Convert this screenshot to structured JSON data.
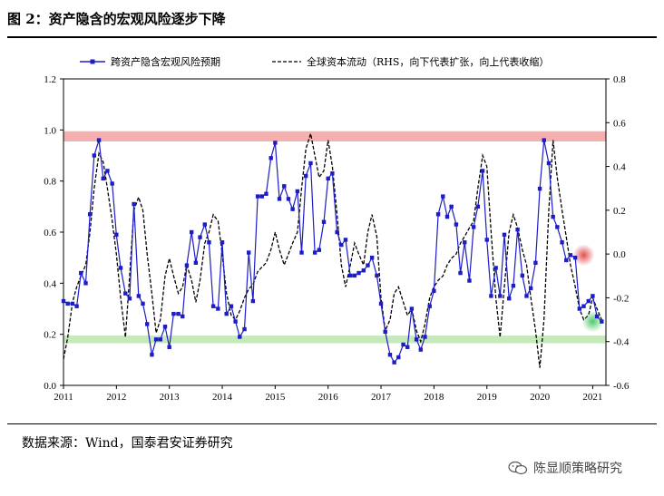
{
  "header": {
    "figure_title": "图 2：资产隐含的宏观风险逐步下降",
    "source": "数据来源：Wind，国泰君安证券研究",
    "watermark": "陈显顺策略研究"
  },
  "colors": {
    "primary_series": "#1c1cc8",
    "secondary_series": "#000000",
    "upper_band": "#f4a6a6",
    "lower_band": "#bfe7b2",
    "highlight_red": "#e03030",
    "highlight_green": "#30c050"
  },
  "chart_data": {
    "type": "line",
    "legend": [
      {
        "label": "跨资产隐含宏观风险预期",
        "style": "solid-marker"
      },
      {
        "label": "全球资本流动（RHS，向下代表扩张，向上代表收缩）",
        "style": "dashed"
      }
    ],
    "legend_position": "top",
    "x_ticks": [
      "2011",
      "2012",
      "2013",
      "2014",
      "2015",
      "2016",
      "2017",
      "2018",
      "2019",
      "2020",
      "2021"
    ],
    "x_range": [
      2011.0,
      2021.25
    ],
    "y_left": {
      "ticks": [
        "0.0",
        "0.2",
        "0.4",
        "0.6",
        "0.8",
        "1.0",
        "1.2"
      ],
      "range": [
        0,
        1.2
      ]
    },
    "y_right": {
      "ticks": [
        "-0.6",
        "-0.4",
        "-0.2",
        "0.0",
        "0.2",
        "0.4",
        "0.6",
        "0.8"
      ],
      "range": [
        -0.6,
        0.8
      ]
    },
    "bands": [
      {
        "axis": "left",
        "from": 0.955,
        "to": 0.995,
        "color": "upper_band"
      },
      {
        "axis": "left",
        "from": 0.165,
        "to": 0.195,
        "color": "lower_band"
      }
    ],
    "grid": false,
    "series": [
      {
        "axis": "left",
        "points": [
          [
            2011.0,
            0.33
          ],
          [
            2011.08,
            0.32
          ],
          [
            2011.17,
            0.32
          ],
          [
            2011.25,
            0.31
          ],
          [
            2011.33,
            0.44
          ],
          [
            2011.42,
            0.4
          ],
          [
            2011.5,
            0.67
          ],
          [
            2011.58,
            0.9
          ],
          [
            2011.67,
            0.96
          ],
          [
            2011.75,
            0.81
          ],
          [
            2011.83,
            0.84
          ],
          [
            2011.92,
            0.79
          ],
          [
            2012.0,
            0.59
          ],
          [
            2012.08,
            0.46
          ],
          [
            2012.17,
            0.36
          ],
          [
            2012.25,
            0.34
          ],
          [
            2012.33,
            0.71
          ],
          [
            2012.42,
            0.35
          ],
          [
            2012.5,
            0.32
          ],
          [
            2012.58,
            0.24
          ],
          [
            2012.67,
            0.12
          ],
          [
            2012.75,
            0.18
          ],
          [
            2012.83,
            0.18
          ],
          [
            2012.92,
            0.23
          ],
          [
            2013.0,
            0.15
          ],
          [
            2013.08,
            0.28
          ],
          [
            2013.17,
            0.28
          ],
          [
            2013.25,
            0.27
          ],
          [
            2013.33,
            0.47
          ],
          [
            2013.42,
            0.6
          ],
          [
            2013.5,
            0.48
          ],
          [
            2013.58,
            0.58
          ],
          [
            2013.67,
            0.63
          ],
          [
            2013.75,
            0.56
          ],
          [
            2013.83,
            0.31
          ],
          [
            2013.92,
            0.3
          ],
          [
            2014.0,
            0.56
          ],
          [
            2014.08,
            0.28
          ],
          [
            2014.17,
            0.31
          ],
          [
            2014.25,
            0.25
          ],
          [
            2014.33,
            0.19
          ],
          [
            2014.42,
            0.22
          ],
          [
            2014.5,
            0.52
          ],
          [
            2014.58,
            0.33
          ],
          [
            2014.67,
            0.74
          ],
          [
            2014.75,
            0.74
          ],
          [
            2014.83,
            0.75
          ],
          [
            2014.92,
            0.89
          ],
          [
            2015.0,
            0.95
          ],
          [
            2015.08,
            0.73
          ],
          [
            2015.17,
            0.78
          ],
          [
            2015.25,
            0.73
          ],
          [
            2015.33,
            0.69
          ],
          [
            2015.42,
            0.76
          ],
          [
            2015.5,
            0.52
          ],
          [
            2015.58,
            0.82
          ],
          [
            2015.67,
            0.87
          ],
          [
            2015.75,
            0.52
          ],
          [
            2015.83,
            0.53
          ],
          [
            2015.92,
            0.64
          ],
          [
            2016.0,
            0.81
          ],
          [
            2016.08,
            0.83
          ],
          [
            2016.17,
            0.6
          ],
          [
            2016.25,
            0.55
          ],
          [
            2016.33,
            0.57
          ],
          [
            2016.42,
            0.43
          ],
          [
            2016.5,
            0.43
          ],
          [
            2016.58,
            0.44
          ],
          [
            2016.67,
            0.45
          ],
          [
            2016.75,
            0.47
          ],
          [
            2016.83,
            0.5
          ],
          [
            2016.92,
            0.43
          ],
          [
            2017.0,
            0.32
          ],
          [
            2017.08,
            0.21
          ],
          [
            2017.17,
            0.12
          ],
          [
            2017.25,
            0.09
          ],
          [
            2017.33,
            0.11
          ],
          [
            2017.42,
            0.16
          ],
          [
            2017.5,
            0.15
          ],
          [
            2017.58,
            0.3
          ],
          [
            2017.67,
            0.18
          ],
          [
            2017.75,
            0.14
          ],
          [
            2017.83,
            0.19
          ],
          [
            2017.92,
            0.31
          ],
          [
            2018.0,
            0.37
          ],
          [
            2018.08,
            0.67
          ],
          [
            2018.17,
            0.74
          ],
          [
            2018.25,
            0.66
          ],
          [
            2018.33,
            0.7
          ],
          [
            2018.42,
            0.63
          ],
          [
            2018.5,
            0.44
          ],
          [
            2018.58,
            0.56
          ],
          [
            2018.67,
            0.41
          ],
          [
            2018.75,
            0.62
          ],
          [
            2018.83,
            0.7
          ],
          [
            2018.92,
            0.84
          ],
          [
            2019.0,
            0.57
          ],
          [
            2019.08,
            0.35
          ],
          [
            2019.17,
            0.46
          ],
          [
            2019.25,
            0.35
          ],
          [
            2019.33,
            0.59
          ],
          [
            2019.42,
            0.34
          ],
          [
            2019.5,
            0.39
          ],
          [
            2019.58,
            0.61
          ],
          [
            2019.67,
            0.43
          ],
          [
            2019.75,
            0.35
          ],
          [
            2019.83,
            0.38
          ],
          [
            2019.92,
            0.48
          ],
          [
            2020.0,
            0.77
          ],
          [
            2020.08,
            0.96
          ],
          [
            2020.17,
            0.87
          ],
          [
            2020.25,
            0.66
          ],
          [
            2020.33,
            0.62
          ],
          [
            2020.42,
            0.56
          ],
          [
            2020.5,
            0.49
          ],
          [
            2020.58,
            0.51
          ],
          [
            2020.67,
            0.5
          ],
          [
            2020.75,
            0.3
          ],
          [
            2020.83,
            0.31
          ],
          [
            2020.92,
            0.33
          ],
          [
            2021.0,
            0.35
          ],
          [
            2021.08,
            0.27
          ],
          [
            2021.17,
            0.25
          ]
        ]
      },
      {
        "axis": "right",
        "points": [
          [
            2011.0,
            -0.48
          ],
          [
            2011.08,
            -0.38
          ],
          [
            2011.17,
            -0.22
          ],
          [
            2011.25,
            -0.15
          ],
          [
            2011.33,
            -0.1
          ],
          [
            2011.42,
            -0.05
          ],
          [
            2011.5,
            0.1
          ],
          [
            2011.58,
            0.3
          ],
          [
            2011.67,
            0.46
          ],
          [
            2011.75,
            0.42
          ],
          [
            2011.83,
            0.3
          ],
          [
            2011.92,
            0.15
          ],
          [
            2012.0,
            0.0
          ],
          [
            2012.08,
            -0.2
          ],
          [
            2012.17,
            -0.38
          ],
          [
            2012.25,
            -0.1
          ],
          [
            2012.33,
            0.2
          ],
          [
            2012.42,
            0.26
          ],
          [
            2012.5,
            0.2
          ],
          [
            2012.58,
            0.0
          ],
          [
            2012.67,
            -0.18
          ],
          [
            2012.75,
            -0.36
          ],
          [
            2012.83,
            -0.3
          ],
          [
            2012.92,
            -0.1
          ],
          [
            2013.0,
            -0.02
          ],
          [
            2013.08,
            -0.1
          ],
          [
            2013.17,
            -0.18
          ],
          [
            2013.25,
            -0.15
          ],
          [
            2013.33,
            -0.05
          ],
          [
            2013.42,
            -0.12
          ],
          [
            2013.5,
            -0.22
          ],
          [
            2013.58,
            -0.12
          ],
          [
            2013.67,
            0.05
          ],
          [
            2013.75,
            0.1
          ],
          [
            2013.83,
            0.18
          ],
          [
            2013.92,
            0.15
          ],
          [
            2014.0,
            0.0
          ],
          [
            2014.08,
            -0.18
          ],
          [
            2014.17,
            -0.28
          ],
          [
            2014.25,
            -0.3
          ],
          [
            2014.33,
            -0.26
          ],
          [
            2014.42,
            -0.2
          ],
          [
            2014.5,
            -0.16
          ],
          [
            2014.58,
            -0.14
          ],
          [
            2014.67,
            -0.08
          ],
          [
            2014.75,
            -0.06
          ],
          [
            2014.83,
            -0.04
          ],
          [
            2014.92,
            0.02
          ],
          [
            2015.0,
            0.1
          ],
          [
            2015.08,
            0.02
          ],
          [
            2015.17,
            -0.05
          ],
          [
            2015.25,
            0.0
          ],
          [
            2015.33,
            0.05
          ],
          [
            2015.42,
            0.1
          ],
          [
            2015.5,
            0.3
          ],
          [
            2015.58,
            0.48
          ],
          [
            2015.67,
            0.55
          ],
          [
            2015.75,
            0.45
          ],
          [
            2015.83,
            0.35
          ],
          [
            2015.92,
            0.38
          ],
          [
            2016.0,
            0.52
          ],
          [
            2016.08,
            0.4
          ],
          [
            2016.17,
            0.18
          ],
          [
            2016.25,
            -0.05
          ],
          [
            2016.33,
            -0.15
          ],
          [
            2016.42,
            -0.05
          ],
          [
            2016.5,
            0.05
          ],
          [
            2016.58,
            0.0
          ],
          [
            2016.67,
            -0.05
          ],
          [
            2016.75,
            0.1
          ],
          [
            2016.83,
            0.18
          ],
          [
            2016.92,
            0.08
          ],
          [
            2017.0,
            -0.2
          ],
          [
            2017.08,
            -0.35
          ],
          [
            2017.17,
            -0.3
          ],
          [
            2017.25,
            -0.18
          ],
          [
            2017.33,
            -0.15
          ],
          [
            2017.42,
            -0.22
          ],
          [
            2017.5,
            -0.28
          ],
          [
            2017.58,
            -0.25
          ],
          [
            2017.67,
            -0.35
          ],
          [
            2017.75,
            -0.4
          ],
          [
            2017.83,
            -0.32
          ],
          [
            2017.92,
            -0.2
          ],
          [
            2018.0,
            -0.15
          ],
          [
            2018.08,
            -0.12
          ],
          [
            2018.17,
            -0.1
          ],
          [
            2018.25,
            -0.05
          ],
          [
            2018.33,
            -0.02
          ],
          [
            2018.42,
            0.0
          ],
          [
            2018.5,
            0.05
          ],
          [
            2018.58,
            0.08
          ],
          [
            2018.67,
            0.12
          ],
          [
            2018.75,
            0.15
          ],
          [
            2018.83,
            0.3
          ],
          [
            2018.92,
            0.45
          ],
          [
            2019.0,
            0.4
          ],
          [
            2019.08,
            0.1
          ],
          [
            2019.17,
            -0.2
          ],
          [
            2019.25,
            -0.38
          ],
          [
            2019.33,
            -0.15
          ],
          [
            2019.42,
            0.1
          ],
          [
            2019.5,
            0.18
          ],
          [
            2019.58,
            0.12
          ],
          [
            2019.67,
            0.02
          ],
          [
            2019.75,
            -0.05
          ],
          [
            2019.83,
            -0.2
          ],
          [
            2019.92,
            -0.35
          ],
          [
            2020.0,
            -0.52
          ],
          [
            2020.08,
            -0.3
          ],
          [
            2020.17,
            0.2
          ],
          [
            2020.25,
            0.52
          ],
          [
            2020.33,
            0.35
          ],
          [
            2020.42,
            0.2
          ],
          [
            2020.5,
            0.08
          ],
          [
            2020.58,
            -0.05
          ],
          [
            2020.67,
            -0.15
          ],
          [
            2020.75,
            -0.25
          ],
          [
            2020.83,
            -0.3
          ],
          [
            2020.92,
            -0.28
          ],
          [
            2021.0,
            -0.2
          ],
          [
            2021.08,
            -0.25
          ],
          [
            2021.17,
            -0.3
          ]
        ]
      }
    ],
    "highlights": [
      {
        "x": 2020.83,
        "y": 0.51,
        "color": "highlight_red"
      },
      {
        "x": 2021.0,
        "y": 0.25,
        "color": "highlight_green"
      }
    ]
  }
}
